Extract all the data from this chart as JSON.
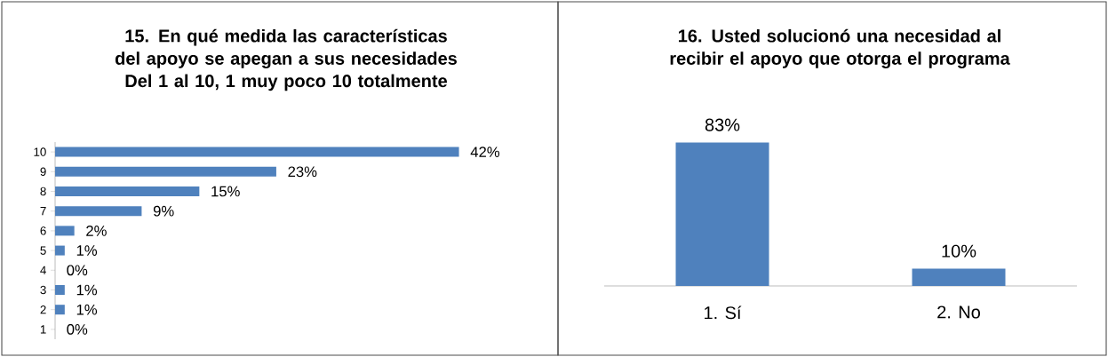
{
  "chart_data": [
    {
      "type": "bar",
      "orientation": "horizontal",
      "title": "15. En qué medida las características del apoyo se apegan a sus necesidades",
      "subtitle": "Del 1 al 10, 1 muy poco 10 totalmente",
      "categories": [
        "10",
        "9",
        "8",
        "7",
        "6",
        "5",
        "4",
        "3",
        "2",
        "1"
      ],
      "values": [
        42,
        23,
        15,
        9,
        2,
        1,
        0,
        1,
        1,
        0
      ],
      "value_labels": [
        "42%",
        "23%",
        "15%",
        "9%",
        "2%",
        "1%",
        "0%",
        "1%",
        "1%",
        "0%"
      ],
      "color": "#4f81bd"
    },
    {
      "type": "bar",
      "title": "16. Usted solucionó una necesidad al recibir el apoyo que otorga el programa",
      "categories": [
        "1. Sí",
        "2. No"
      ],
      "values": [
        83,
        10
      ],
      "value_labels": [
        "83%",
        "10%"
      ],
      "color": "#4f81bd"
    }
  ]
}
